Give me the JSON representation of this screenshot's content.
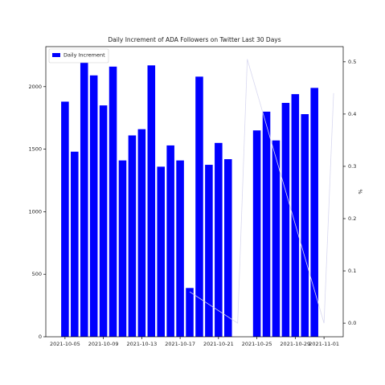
{
  "chart_data": {
    "type": "bar",
    "title": "Daily Increment of ADA Followers on Twitter Last 30 Days",
    "x": [
      "2021-10-05",
      "2021-10-06",
      "2021-10-07",
      "2021-10-08",
      "2021-10-09",
      "2021-10-10",
      "2021-10-11",
      "2021-10-12",
      "2021-10-13",
      "2021-10-14",
      "2021-10-15",
      "2021-10-16",
      "2021-10-17",
      "2021-10-18",
      "2021-10-19",
      "2021-10-20",
      "2021-10-21",
      "2021-10-22",
      "2021-10-25",
      "2021-10-26",
      "2021-10-27",
      "2021-10-28",
      "2021-10-29",
      "2021-10-30",
      "2021-10-31"
    ],
    "series": [
      {
        "name": "Daily Increment",
        "color": "#0000ff",
        "values": [
          1880,
          1480,
          2210,
          2090,
          1850,
          2160,
          1410,
          1610,
          1660,
          2170,
          1360,
          1530,
          1410,
          390,
          2080,
          1375,
          1550,
          1420,
          1650,
          1800,
          1570,
          1870,
          1940,
          1780,
          1990
        ]
      },
      {
        "type": "line",
        "axis": "y2",
        "color": "#d8d8f0",
        "x": [
          "2021-10-18",
          "2021-10-23",
          "2021-10-24",
          "2021-11-01",
          "2021-11-02"
        ],
        "values": [
          0.06,
          0.0,
          0.505,
          0.0,
          0.44
        ]
      }
    ],
    "y2label": "%",
    "xlim": [
      "2021-10-03",
      "2021-11-03"
    ],
    "xticks": [
      "2021-10-05",
      "2021-10-09",
      "2021-10-13",
      "2021-10-17",
      "2021-10-21",
      "2021-10-25",
      "2021-10-29",
      "2021-11-01"
    ],
    "ylim": [
      0,
      2320
    ],
    "yticks": [
      0,
      500,
      1000,
      1500,
      2000
    ],
    "y2lim": [
      -0.026,
      0.529
    ],
    "y2ticks": [
      {
        "value": 0,
        "label": "0.0"
      },
      0.1,
      0.2,
      0.3,
      0.4,
      0.5
    ],
    "legend": "upper left"
  }
}
